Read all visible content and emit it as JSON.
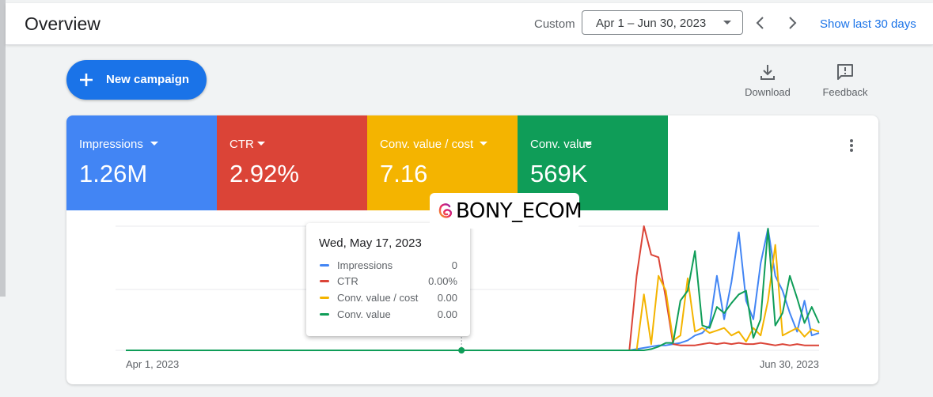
{
  "header": {
    "title": "Overview",
    "custom_label": "Custom",
    "date_range": "Apr 1 – Jun 30, 2023",
    "show_last": "Show last 30 days"
  },
  "actions": {
    "new_campaign": "New campaign",
    "download": "Download",
    "feedback": "Feedback"
  },
  "metrics": [
    {
      "label": "Impressions",
      "value": "1.26M",
      "color": "#4285f4"
    },
    {
      "label": "CTR",
      "value": "2.92%",
      "color": "#db4437"
    },
    {
      "label": "Conv. value / cost",
      "value": "7.16",
      "color": "#f4b400"
    },
    {
      "label": "Conv. value",
      "value": "569K",
      "color": "#0f9d58"
    }
  ],
  "tooltip": {
    "date": "Wed, May 17, 2023",
    "rows": [
      {
        "name": "Impressions",
        "value": "0",
        "color": "#4285f4"
      },
      {
        "name": "CTR",
        "value": "0.00%",
        "color": "#db4437"
      },
      {
        "name": "Conv. value / cost",
        "value": "0.00",
        "color": "#f4b400"
      },
      {
        "name": "Conv. value",
        "value": "0.00",
        "color": "#0f9d58"
      }
    ]
  },
  "watermark": "BONY_ECOM",
  "chart_data": {
    "type": "line",
    "x_start": "Apr 1, 2023",
    "x_end": "Jun 30, 2023",
    "x_labels": [
      "Apr 1, 2023",
      "Jun 30, 2023"
    ],
    "grid": true,
    "highlight_date": "May 17, 2023",
    "highlight_index": 46,
    "series": [
      {
        "name": "Impressions",
        "color": "#4285f4",
        "values": [
          0,
          0,
          0,
          0,
          0,
          0,
          0,
          0,
          0,
          0,
          0,
          0,
          0,
          0,
          0,
          0,
          0,
          0,
          0,
          0,
          0,
          0,
          0,
          0,
          0,
          0,
          0,
          0,
          0,
          0,
          0,
          0,
          0,
          0,
          0,
          0,
          0,
          0,
          0,
          0,
          0,
          0,
          0,
          0,
          0,
          0,
          0,
          0,
          0,
          0,
          0,
          0,
          0,
          0,
          0,
          0,
          0,
          0,
          0,
          0,
          0,
          0,
          0,
          0,
          0,
          0,
          0,
          0,
          0,
          0,
          1,
          2,
          3,
          4,
          4,
          5,
          6,
          8,
          12,
          14,
          20,
          60,
          25,
          55,
          95,
          40,
          25,
          70,
          98,
          60,
          48,
          30,
          15,
          40,
          12,
          14
        ]
      },
      {
        "name": "CTR",
        "color": "#db4437",
        "values": [
          0,
          0,
          0,
          0,
          0,
          0,
          0,
          0,
          0,
          0,
          0,
          0,
          0,
          0,
          0,
          0,
          0,
          0,
          0,
          0,
          0,
          0,
          0,
          0,
          0,
          0,
          0,
          0,
          0,
          0,
          0,
          0,
          0,
          0,
          0,
          0,
          0,
          0,
          0,
          0,
          0,
          0,
          0,
          0,
          0,
          0,
          0,
          0,
          0,
          0,
          0,
          0,
          0,
          0,
          0,
          0,
          0,
          0,
          0,
          0,
          0,
          0,
          0,
          0,
          0,
          0,
          0,
          0,
          0,
          0,
          60,
          100,
          77,
          75,
          42,
          5,
          4,
          4,
          4,
          5,
          6,
          5,
          6,
          5,
          6,
          5,
          5,
          6,
          5,
          4,
          5,
          4,
          5,
          4,
          4,
          4
        ]
      },
      {
        "name": "Conv. value / cost",
        "color": "#f4b400",
        "values": [
          0,
          0,
          0,
          0,
          0,
          0,
          0,
          0,
          0,
          0,
          0,
          0,
          0,
          0,
          0,
          0,
          0,
          0,
          0,
          0,
          0,
          0,
          0,
          0,
          0,
          0,
          0,
          0,
          0,
          0,
          0,
          0,
          0,
          0,
          0,
          0,
          0,
          0,
          0,
          0,
          0,
          0,
          0,
          0,
          0,
          0,
          0,
          0,
          0,
          0,
          0,
          0,
          0,
          0,
          0,
          0,
          0,
          0,
          0,
          0,
          0,
          0,
          0,
          0,
          0,
          0,
          0,
          0,
          0,
          0,
          0,
          45,
          5,
          60,
          48,
          8,
          12,
          58,
          15,
          18,
          14,
          16,
          18,
          12,
          15,
          7,
          18,
          12,
          40,
          85,
          12,
          15,
          18,
          11,
          17,
          15
        ]
      },
      {
        "name": "Conv. value",
        "color": "#0f9d58",
        "values": [
          0,
          0,
          0,
          0,
          0,
          0,
          0,
          0,
          0,
          0,
          0,
          0,
          0,
          0,
          0,
          0,
          0,
          0,
          0,
          0,
          0,
          0,
          0,
          0,
          0,
          0,
          0,
          0,
          0,
          0,
          0,
          0,
          0,
          0,
          0,
          0,
          0,
          0,
          0,
          0,
          0,
          0,
          0,
          0,
          0,
          0,
          0,
          0,
          0,
          0,
          0,
          0,
          0,
          0,
          0,
          0,
          0,
          0,
          0,
          0,
          0,
          0,
          0,
          0,
          0,
          0,
          0,
          0,
          0,
          0,
          0,
          0,
          1,
          3,
          6,
          6,
          40,
          48,
          80,
          20,
          18,
          35,
          30,
          38,
          45,
          48,
          10,
          25,
          98,
          20,
          30,
          60,
          42,
          22,
          35,
          22
        ]
      }
    ]
  }
}
